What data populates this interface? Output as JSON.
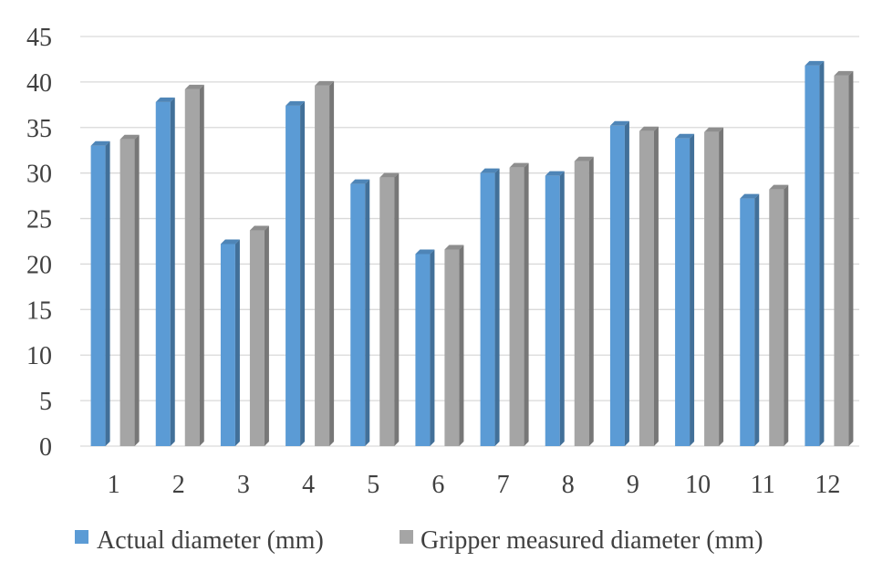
{
  "chart_data": {
    "type": "bar",
    "title": "",
    "xlabel": "",
    "ylabel": "",
    "categories": [
      "1",
      "2",
      "3",
      "4",
      "5",
      "6",
      "7",
      "8",
      "9",
      "10",
      "11",
      "12"
    ],
    "ylim": [
      0,
      45
    ],
    "yticks": [
      0,
      5,
      10,
      15,
      20,
      25,
      30,
      35,
      40,
      45
    ],
    "grid": true,
    "legend_position": "bottom",
    "style": "3d-column",
    "series": [
      {
        "name": "Actual diameter (mm)",
        "color": "#5b9bd5",
        "values": [
          33,
          37.8,
          22.2,
          37.4,
          28.8,
          21.1,
          30,
          29.7,
          35.2,
          33.8,
          27.2,
          41.8
        ]
      },
      {
        "name": "Gripper measured diameter (mm)",
        "color": "#a5a5a5",
        "values": [
          33.7,
          39.2,
          23.7,
          39.6,
          29.5,
          21.6,
          30.6,
          31.3,
          34.6,
          34.5,
          28.2,
          40.7
        ]
      }
    ]
  }
}
